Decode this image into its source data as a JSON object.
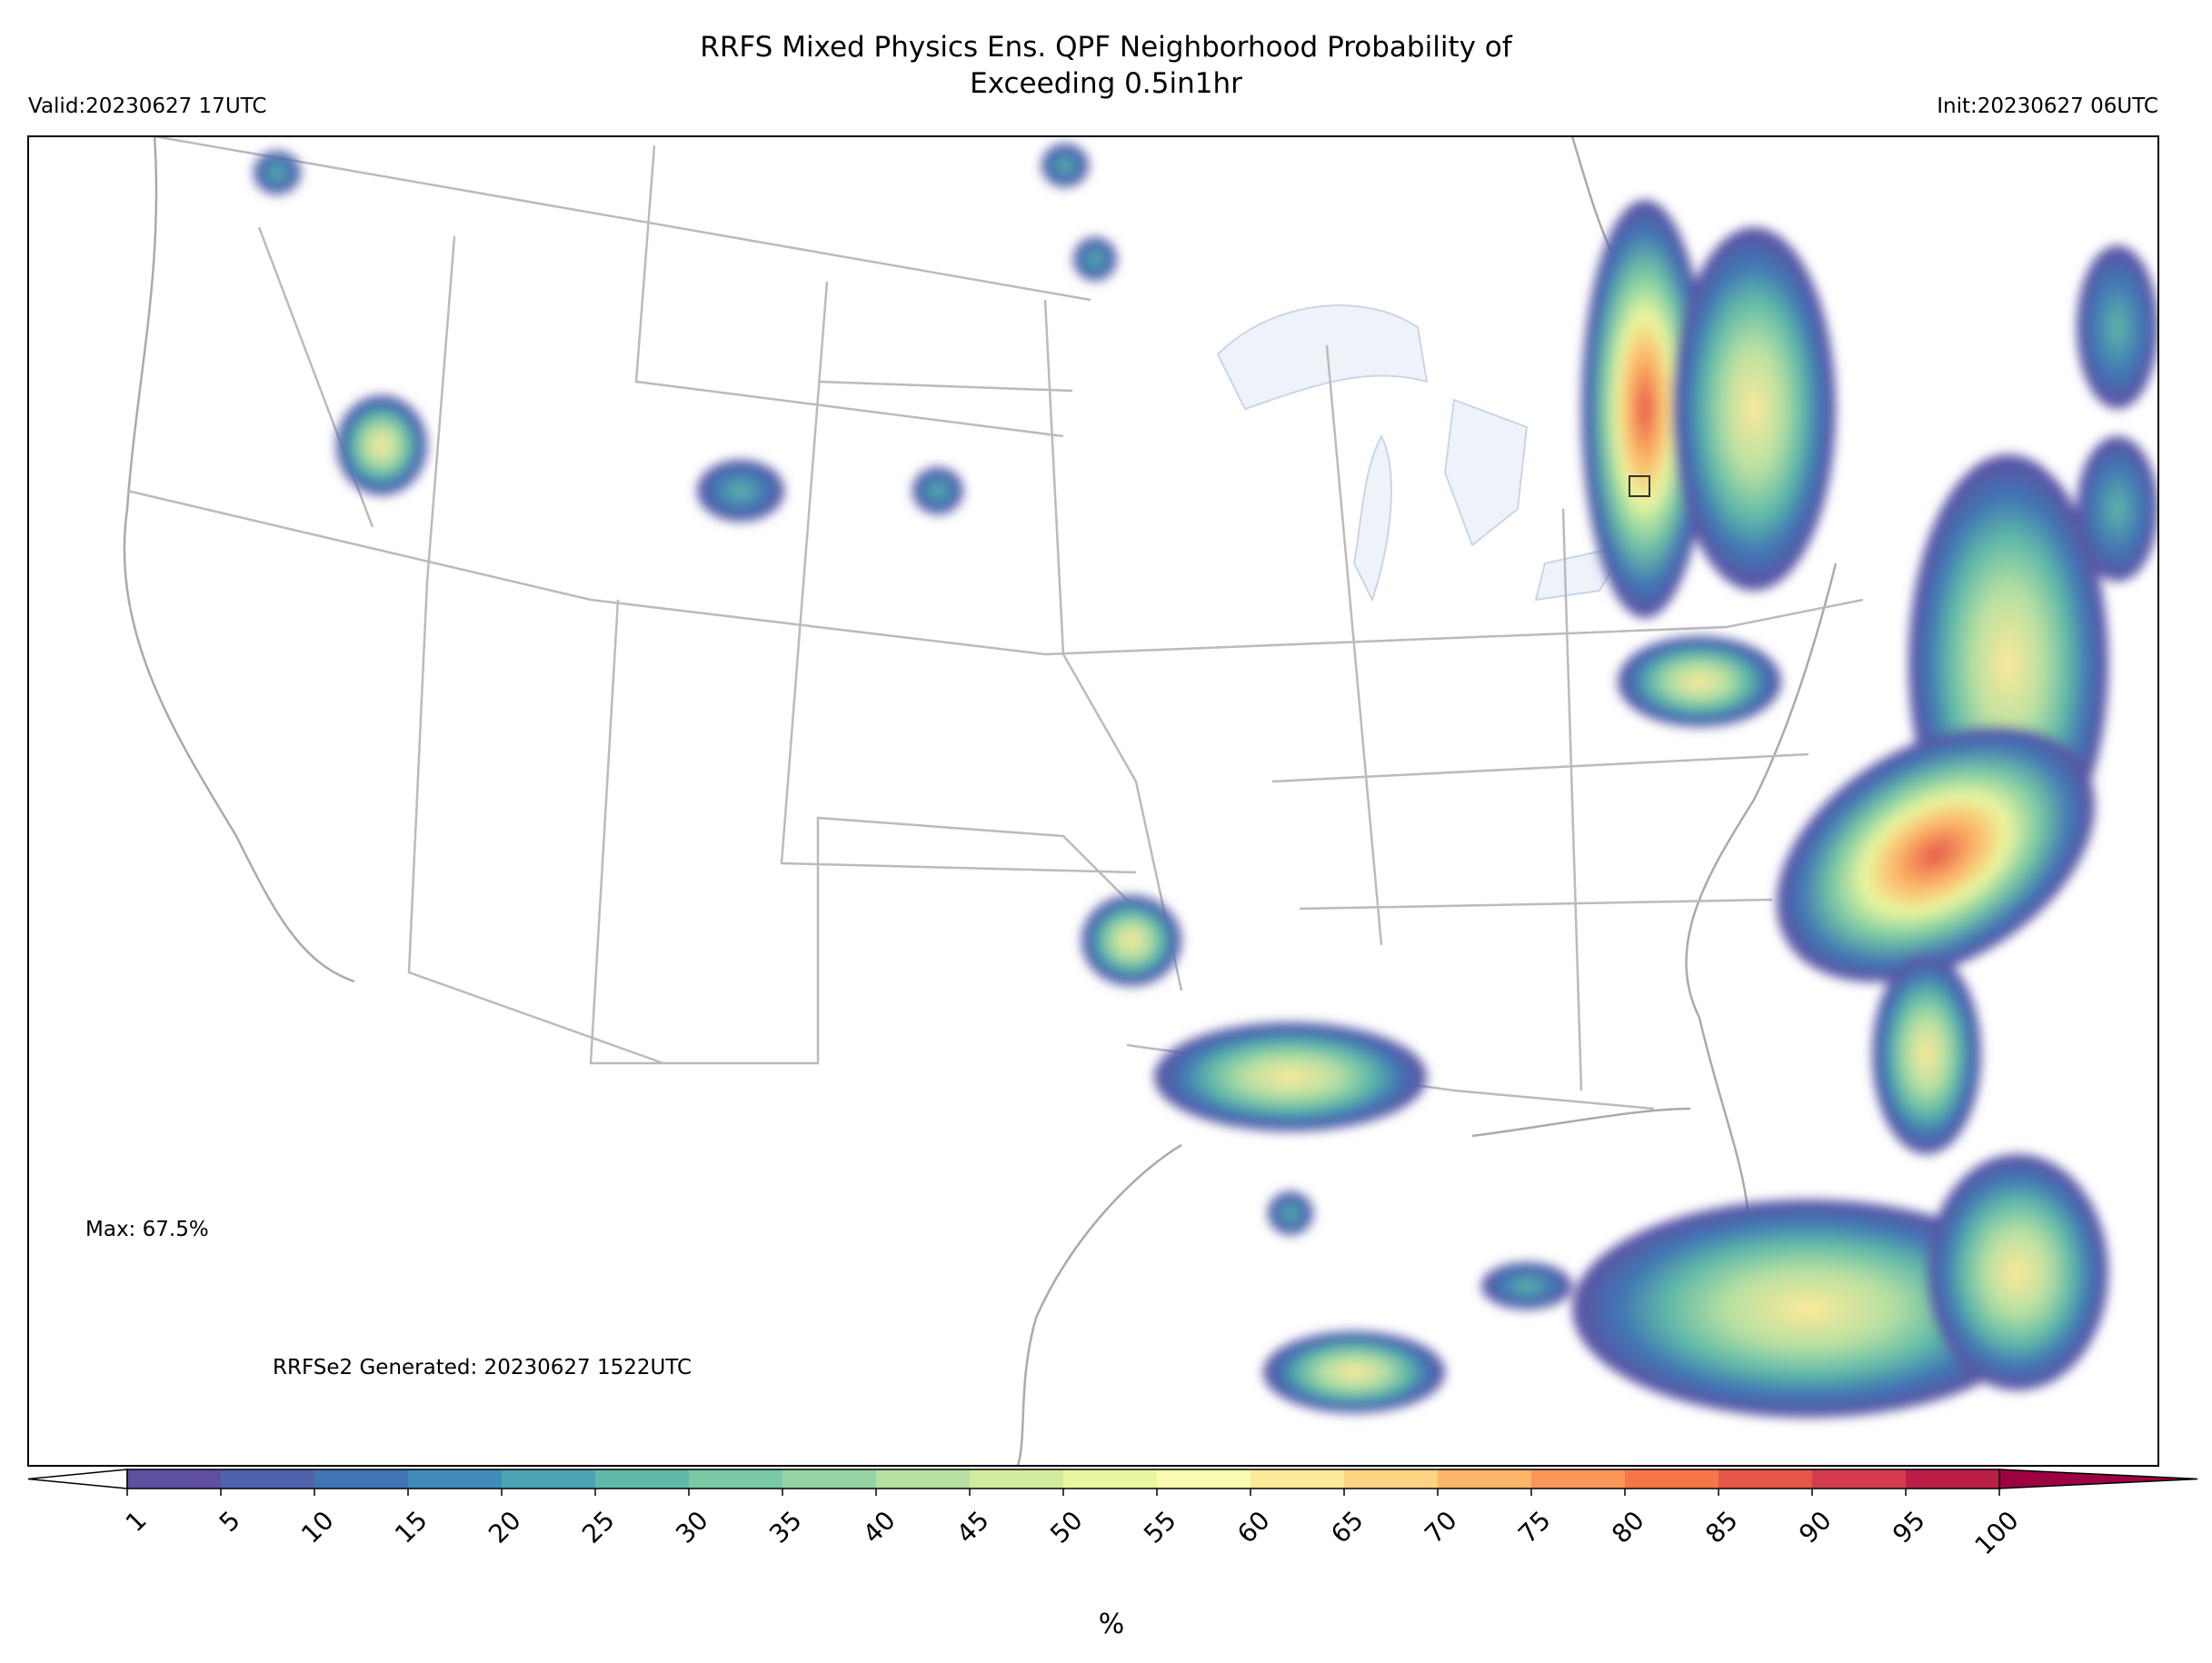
{
  "title": "RRFS Mixed Physics Ens. QPF Neighborhood Probability of\nExceeding 0.5in1hr",
  "valid": "Valid:20230627 17UTC",
  "init": "Init:20230627 06UTC",
  "max_label": "Max: 67.5%",
  "generated": "RRFSe2 Generated: 20230627 1522UTC",
  "colorbar": {
    "label": "%",
    "ticks": [
      1,
      5,
      10,
      15,
      20,
      25,
      30,
      35,
      40,
      45,
      50,
      55,
      60,
      65,
      70,
      75,
      80,
      85,
      90,
      95,
      100
    ],
    "colors": [
      "#5e4fa2",
      "#4f62ab",
      "#4075b4",
      "#3f8cba",
      "#4ba4b1",
      "#5fb9a8",
      "#79c9a4",
      "#97d4a4",
      "#b6e0a2",
      "#d1ec9c",
      "#eaf79e",
      "#f9fbb2",
      "#fee999",
      "#fed382",
      "#fdb567",
      "#fa9757",
      "#f57647",
      "#e55749",
      "#d33c4e",
      "#b91f47"
    ],
    "extend_colors": [
      "#ffffff",
      "#9e0142"
    ]
  }
}
